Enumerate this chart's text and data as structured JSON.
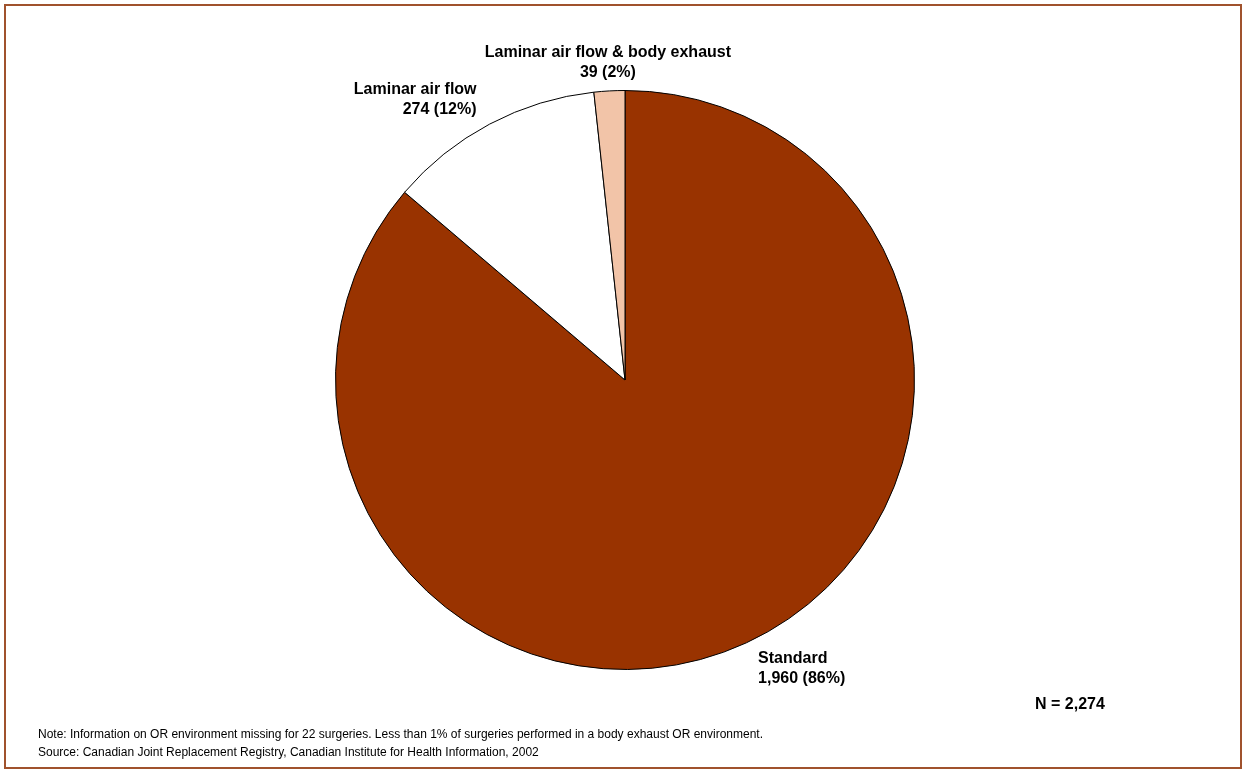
{
  "chart_data": {
    "type": "pie",
    "categories": [
      "Standard",
      "Laminar air flow",
      "Laminar air flow & body exhaust"
    ],
    "values": [
      1960,
      274,
      39
    ],
    "colors": [
      "#993300",
      "#ffffff",
      "#f2c4a8"
    ],
    "value_labels": [
      "1,960 (86%)",
      "274 (12%)",
      "39 (2%)"
    ],
    "annotations": [
      "N = 2,274",
      "Note: Information on OR environment missing for 22 surgeries. Less than 1% of surgeries performed in a body exhaust OR environment.",
      "Source: Canadian Joint Replacement Registry, Canadian Institute for Health Information, 2002"
    ]
  }
}
